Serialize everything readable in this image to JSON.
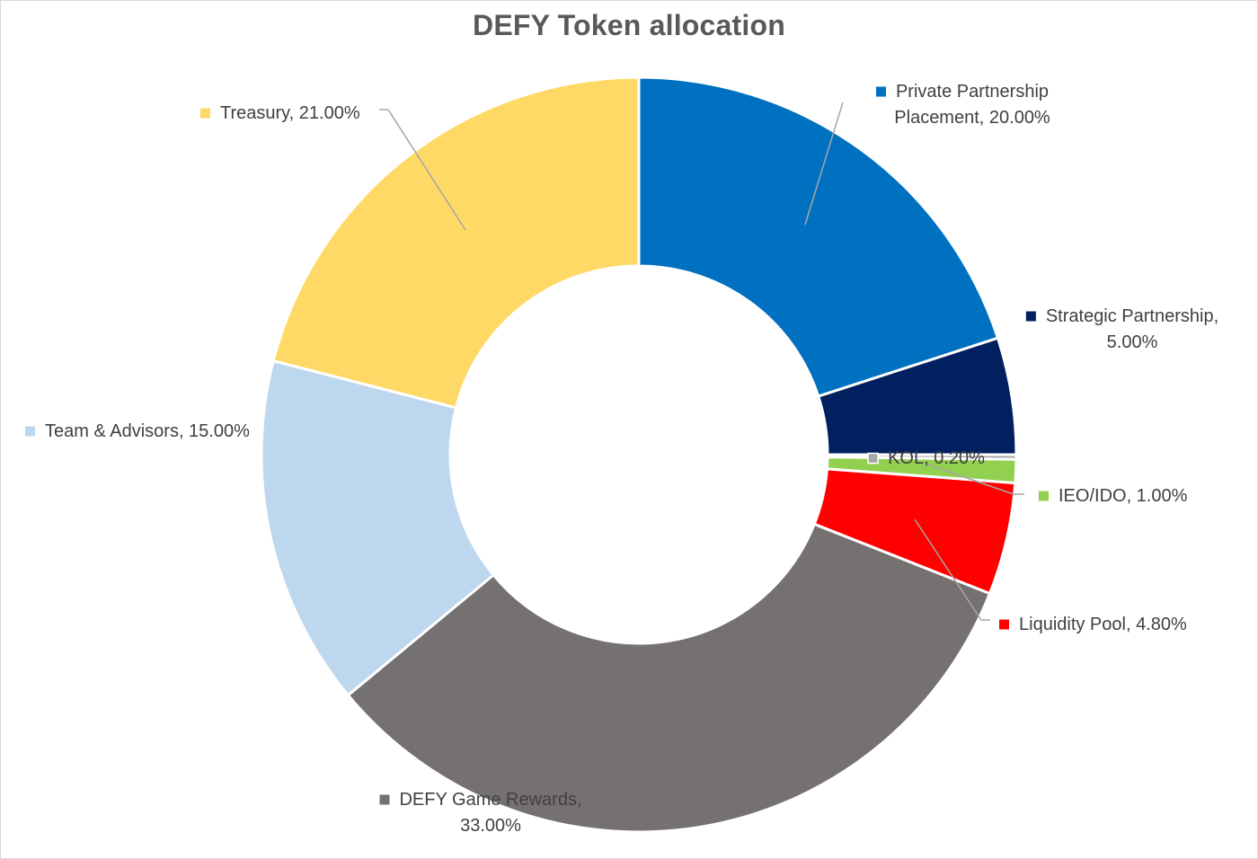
{
  "chart_data": {
    "type": "pie",
    "subtype": "doughnut",
    "title": "DEFY Token allocation",
    "legend": "none",
    "slices": [
      {
        "name": "Private Partnership Placement",
        "value": 20.0,
        "color": "#0070C0",
        "label_lines": [
          "Private Partnership",
          "Placement, 20.00%"
        ]
      },
      {
        "name": "Strategic Partnership",
        "value": 5.0,
        "color": "#002060",
        "label_lines": [
          "Strategic Partnership,",
          "5.00%"
        ]
      },
      {
        "name": "KOL",
        "value": 0.2,
        "color": "#A6A6A6",
        "label_lines": [
          "KOL, 0.20%"
        ]
      },
      {
        "name": "IEO/IDO",
        "value": 1.0,
        "color": "#92D050",
        "label_lines": [
          "IEO/IDO, 1.00%"
        ]
      },
      {
        "name": "Liquidity Pool",
        "value": 4.8,
        "color": "#FF0000",
        "label_lines": [
          "Liquidity Pool, 4.80%"
        ]
      },
      {
        "name": "DEFY Game Rewards",
        "value": 33.0,
        "color": "#767171",
        "label_lines": [
          "DEFY Game Rewards,",
          "33.00%"
        ]
      },
      {
        "name": "Team & Advisors",
        "value": 15.0,
        "color": "#BDD7EE",
        "label_lines": [
          "Team & Advisors, 15.00%"
        ]
      },
      {
        "name": "Treasury",
        "value": 21.0,
        "color": "#FFD966",
        "label_lines": [
          "Treasury, 21.00%"
        ]
      }
    ]
  }
}
